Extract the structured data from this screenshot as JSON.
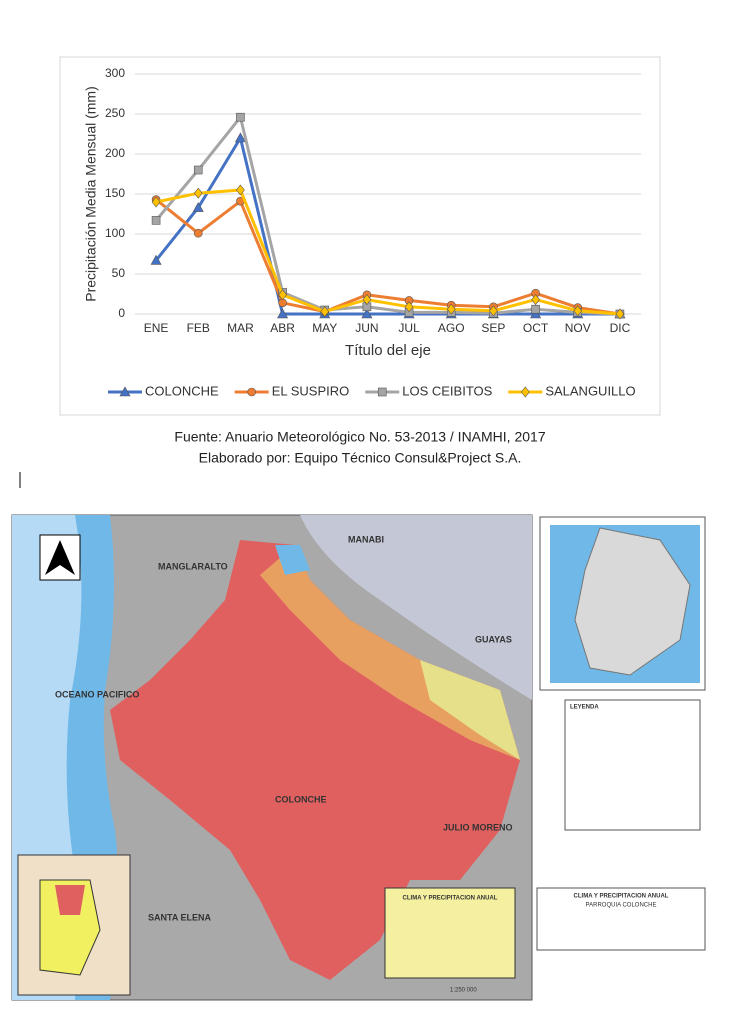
{
  "chart_data": {
    "type": "line",
    "y_label": "Precipitación Media Mensual (mm)",
    "x_label": "Título del eje",
    "categories": [
      "ENE",
      "FEB",
      "MAR",
      "ABR",
      "MAY",
      "JUN",
      "JUL",
      "AGO",
      "SEP",
      "OCT",
      "NOV",
      "DIC"
    ],
    "series": [
      {
        "name": "COLONCHE",
        "color": "#4472c4",
        "marker": "triangle",
        "values": [
          67,
          133,
          220,
          0,
          0,
          0,
          0,
          0,
          0,
          0,
          0,
          0
        ]
      },
      {
        "name": "EL SUSPIRO",
        "color": "#ed7d31",
        "marker": "circle",
        "values": [
          143,
          101,
          141,
          14,
          3,
          24,
          17,
          11,
          9,
          26,
          8,
          0
        ]
      },
      {
        "name": "LOS CEIBITOS",
        "color": "#a5a5a5",
        "marker": "square",
        "values": [
          117,
          180,
          246,
          27,
          5,
          9,
          2,
          2,
          1,
          6,
          2,
          0
        ]
      },
      {
        "name": "SALANGUILLO",
        "color": "#ffc000",
        "marker": "diamond",
        "values": [
          140,
          151,
          155,
          24,
          3,
          18,
          9,
          6,
          4,
          18,
          4,
          0
        ]
      }
    ],
    "ylim": [
      0,
      300
    ],
    "yticks": [
      0,
      50,
      100,
      150,
      200,
      250,
      300
    ],
    "grid": true,
    "legend": "bottom"
  },
  "source": {
    "line1": "Fuente: Anuario Meteorológico No. 53-2013 / INAMHI, 2017",
    "line2": "Elaborado por: Equipo Técnico Consul&Project S.A."
  },
  "map": {
    "labels": [
      "MANABI",
      "MANGLARALTO",
      "OCEANO PACIFICO",
      "GUAYAS",
      "COLONCHE",
      "JULIO MORENO",
      "SANTA ELENA",
      "1:250 000"
    ],
    "legend_title": "LEYENDA",
    "box_title": "CLIMA Y PRECIPITACION ANUAL",
    "block_title": "CLIMA Y PRECIPITACION ANUAL",
    "block_subtitle": "PARROQUIA COLONCHE"
  }
}
